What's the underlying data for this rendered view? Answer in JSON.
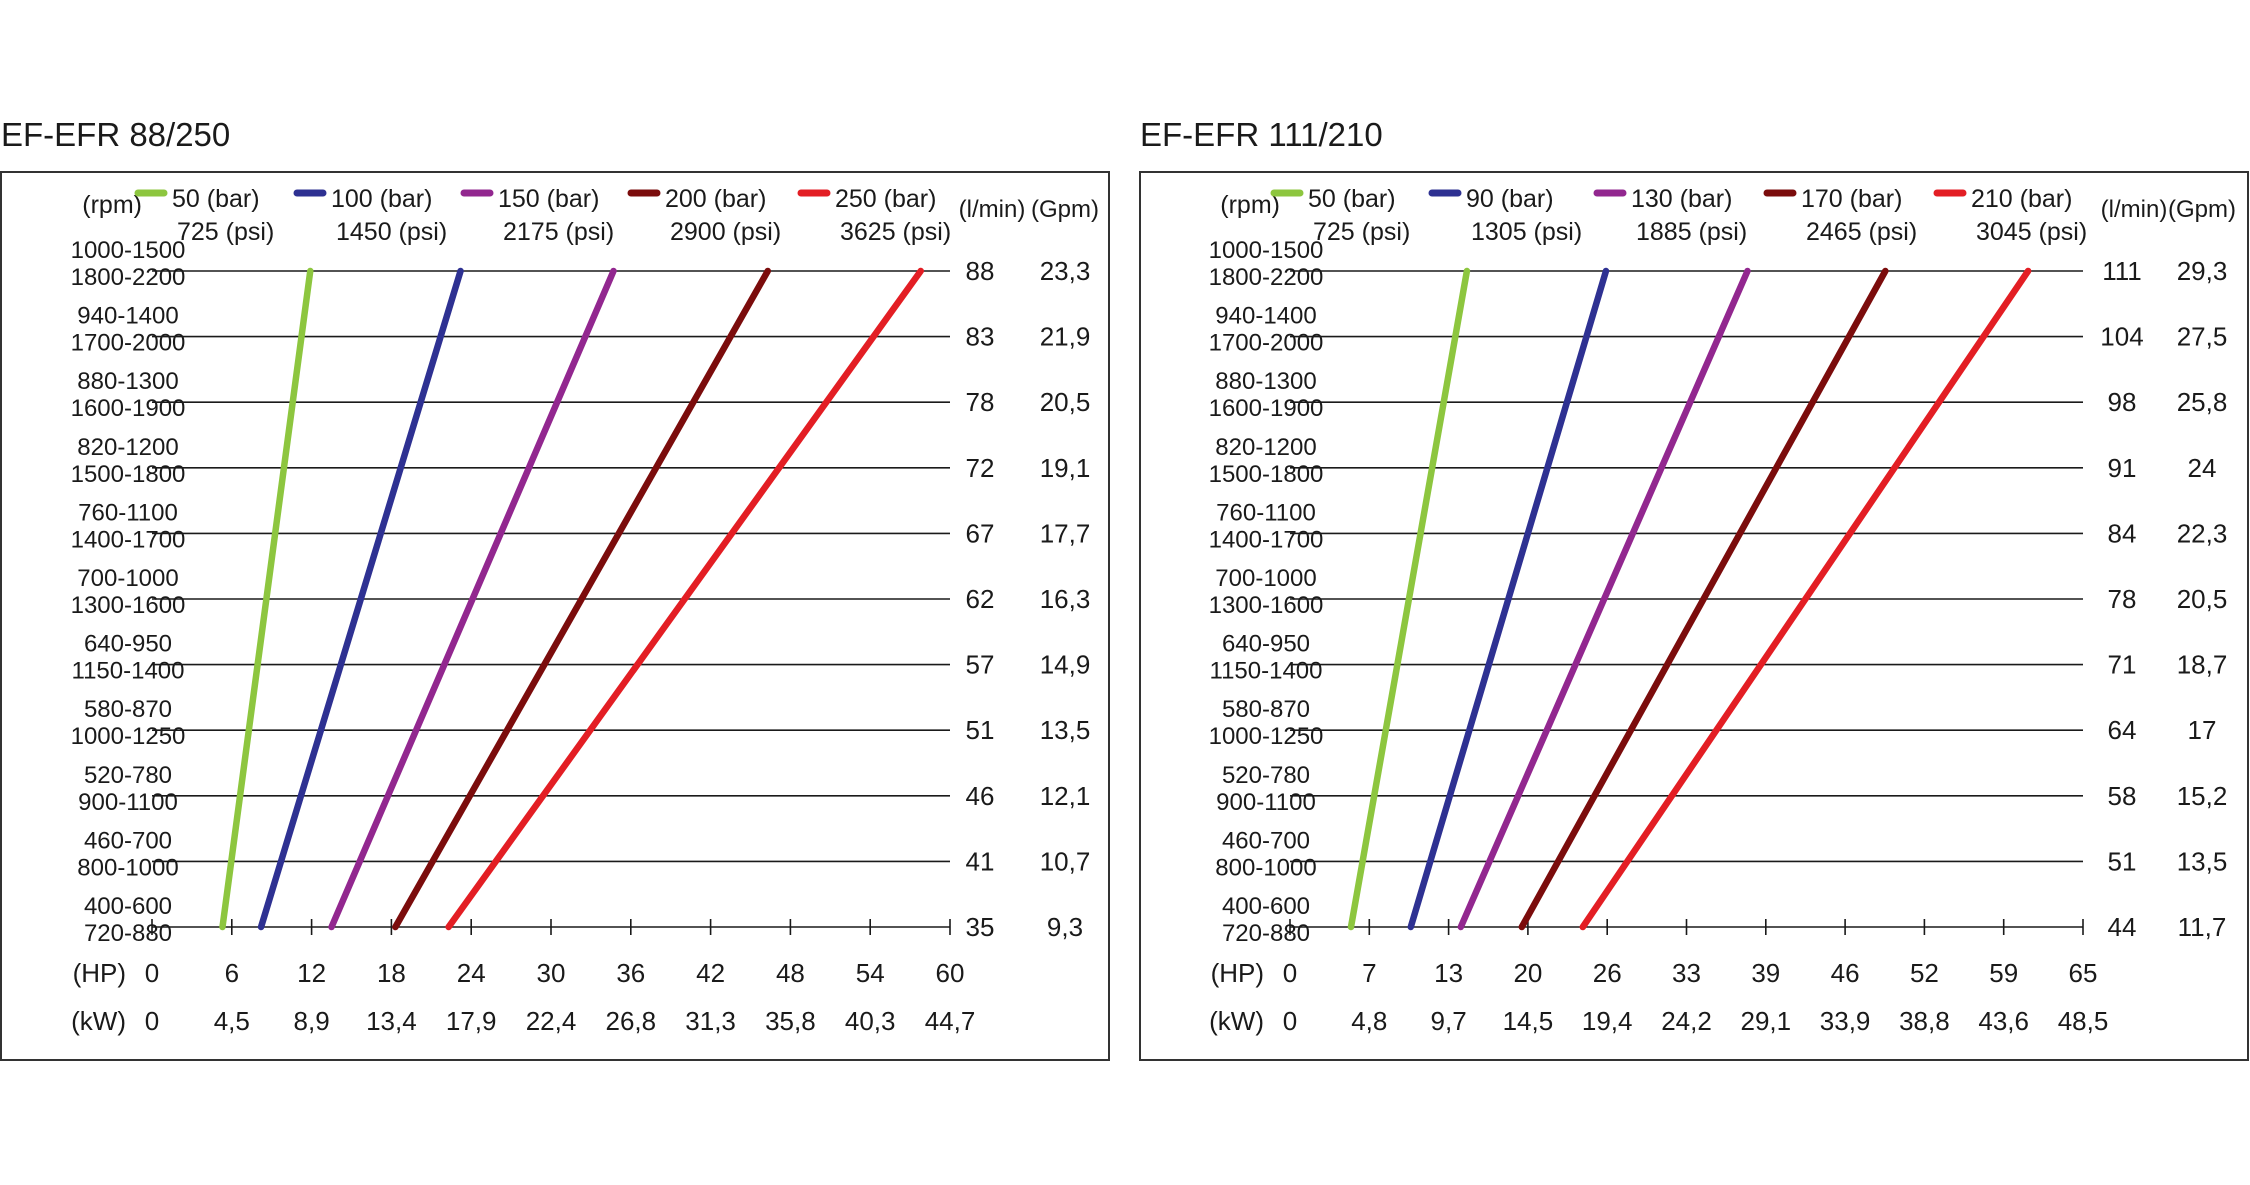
{
  "chart_data": [
    {
      "type": "line",
      "title": "EF-EFR 88/250",
      "ylabel_left": "(rpm)",
      "ylabel_right_1": "(l/min)",
      "ylabel_right_2": "(Gpm)",
      "x_hp_label": "(HP)",
      "x_kw_label": "(kW)",
      "x_hp_ticks": [
        "0",
        "6",
        "12",
        "18",
        "24",
        "30",
        "36",
        "42",
        "48",
        "54",
        "60"
      ],
      "x_kw_ticks": [
        "0",
        "4,5",
        "8,9",
        "13,4",
        "17,9",
        "22,4",
        "26,8",
        "31,3",
        "35,8",
        "40,3",
        "44,7"
      ],
      "xlim": [
        0,
        60
      ],
      "rows": [
        {
          "rpm1": "1000-1500",
          "rpm2": "1800-2200",
          "lmin": "88",
          "gpm": "23,3"
        },
        {
          "rpm1": "940-1400",
          "rpm2": "1700-2000",
          "lmin": "83",
          "gpm": "21,9"
        },
        {
          "rpm1": "880-1300",
          "rpm2": "1600-1900",
          "lmin": "78",
          "gpm": "20,5"
        },
        {
          "rpm1": "820-1200",
          "rpm2": "1500-1800",
          "lmin": "72",
          "gpm": "19,1"
        },
        {
          "rpm1": "760-1100",
          "rpm2": "1400-1700",
          "lmin": "67",
          "gpm": "17,7"
        },
        {
          "rpm1": "700-1000",
          "rpm2": "1300-1600",
          "lmin": "62",
          "gpm": "16,3"
        },
        {
          "rpm1": "640-950",
          "rpm2": "1150-1400",
          "lmin": "57",
          "gpm": "14,9"
        },
        {
          "rpm1": "580-870",
          "rpm2": "1000-1250",
          "lmin": "51",
          "gpm": "13,5"
        },
        {
          "rpm1": "520-780",
          "rpm2": "900-1100",
          "lmin": "46",
          "gpm": "12,1"
        },
        {
          "rpm1": "460-700",
          "rpm2": "800-1000",
          "lmin": "41",
          "gpm": "10,7"
        },
        {
          "rpm1": "400-600",
          "rpm2": "720-880",
          "lmin": "35",
          "gpm": "9,3"
        }
      ],
      "series": [
        {
          "name": "50 (bar)",
          "name2": "725 (psi)",
          "color": "#8dc63f",
          "x_at_min": 5.3,
          "x_at_max": 11.9
        },
        {
          "name": "100 (bar)",
          "name2": "1450 (psi)",
          "color": "#2e3192",
          "x_at_min": 8.2,
          "x_at_max": 23.2
        },
        {
          "name": "150 (bar)",
          "name2": "2175 (psi)",
          "color": "#92278f",
          "x_at_min": 13.5,
          "x_at_max": 34.7
        },
        {
          "name": "200 (bar)",
          "name2": "2900 (psi)",
          "color": "#7b0c0c",
          "x_at_min": 18.3,
          "x_at_max": 46.3
        },
        {
          "name": "250 (bar)",
          "name2": "3625 (psi)",
          "color": "#e31e24",
          "x_at_min": 22.3,
          "x_at_max": 57.8
        }
      ]
    },
    {
      "type": "line",
      "title": "EF-EFR 111/210",
      "ylabel_left": "(rpm)",
      "ylabel_right_1": "(l/min)",
      "ylabel_right_2": "(Gpm)",
      "x_hp_label": "(HP)",
      "x_kw_label": "(kW)",
      "x_hp_ticks": [
        "0",
        "7",
        "13",
        "20",
        "26",
        "33",
        "39",
        "46",
        "52",
        "59",
        "65"
      ],
      "x_kw_ticks": [
        "0",
        "4,8",
        "9,7",
        "14,5",
        "19,4",
        "24,2",
        "29,1",
        "33,9",
        "38,8",
        "43,6",
        "48,5"
      ],
      "xlim": [
        0,
        65
      ],
      "rows": [
        {
          "rpm1": "1000-1500",
          "rpm2": "1800-2200",
          "lmin": "111",
          "gpm": "29,3"
        },
        {
          "rpm1": "940-1400",
          "rpm2": "1700-2000",
          "lmin": "104",
          "gpm": "27,5"
        },
        {
          "rpm1": "880-1300",
          "rpm2": "1600-1900",
          "lmin": "98",
          "gpm": "25,8"
        },
        {
          "rpm1": "820-1200",
          "rpm2": "1500-1800",
          "lmin": "91",
          "gpm": "24"
        },
        {
          "rpm1": "760-1100",
          "rpm2": "1400-1700",
          "lmin": "84",
          "gpm": "22,3"
        },
        {
          "rpm1": "700-1000",
          "rpm2": "1300-1600",
          "lmin": "78",
          "gpm": "20,5"
        },
        {
          "rpm1": "640-950",
          "rpm2": "1150-1400",
          "lmin": "71",
          "gpm": "18,7"
        },
        {
          "rpm1": "580-870",
          "rpm2": "1000-1250",
          "lmin": "64",
          "gpm": "17"
        },
        {
          "rpm1": "520-780",
          "rpm2": "900-1100",
          "lmin": "58",
          "gpm": "15,2"
        },
        {
          "rpm1": "460-700",
          "rpm2": "800-1000",
          "lmin": "51",
          "gpm": "13,5"
        },
        {
          "rpm1": "400-600",
          "rpm2": "720-880",
          "lmin": "44",
          "gpm": "11,7"
        }
      ],
      "series": [
        {
          "name": "50 (bar)",
          "name2": "725 (psi)",
          "color": "#8dc63f",
          "x_at_min": 5.0,
          "x_at_max": 14.5
        },
        {
          "name": "90 (bar)",
          "name2": "1305 (psi)",
          "color": "#2e3192",
          "x_at_min": 9.9,
          "x_at_max": 25.9
        },
        {
          "name": "130 (bar)",
          "name2": "1885 (psi)",
          "color": "#92278f",
          "x_at_min": 14.0,
          "x_at_max": 37.5
        },
        {
          "name": "170 (bar)",
          "name2": "2465 (psi)",
          "color": "#7b0c0c",
          "x_at_min": 19.0,
          "x_at_max": 48.8
        },
        {
          "name": "210 (bar)",
          "name2": "3045 (psi)",
          "color": "#e31e24",
          "x_at_min": 24.0,
          "x_at_max": 60.5
        }
      ]
    }
  ]
}
